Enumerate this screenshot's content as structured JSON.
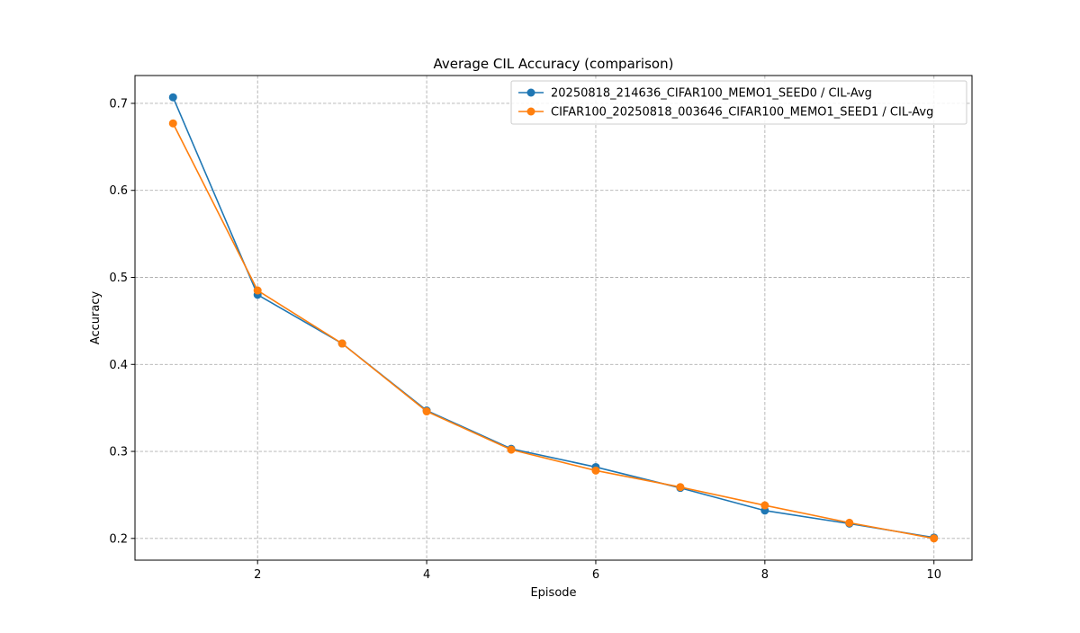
{
  "chart_data": {
    "type": "line",
    "title": "Average CIL Accuracy (comparison)",
    "xlabel": "Episode",
    "ylabel": "Accuracy",
    "xlim": [
      0.55,
      10.45
    ],
    "ylim": [
      0.175,
      0.732
    ],
    "xticks": [
      2,
      4,
      6,
      8,
      10
    ],
    "yticks": [
      0.2,
      0.3,
      0.4,
      0.5,
      0.6,
      0.7
    ],
    "xtick_labels": [
      "2",
      "4",
      "6",
      "8",
      "10"
    ],
    "ytick_labels": [
      "0.2",
      "0.3",
      "0.4",
      "0.5",
      "0.6",
      "0.7"
    ],
    "grid": true,
    "legend_position": "top-right",
    "x": [
      1,
      2,
      3,
      4,
      5,
      6,
      7,
      8,
      9,
      10
    ],
    "series": [
      {
        "name": "20250818_214636_CIFAR100_MEMO1_SEED0 / CIL-Avg",
        "color": "#1f77b4",
        "marker": "circle",
        "values": [
          0.707,
          0.48,
          0.424,
          0.347,
          0.303,
          0.282,
          0.258,
          0.232,
          0.217,
          0.201
        ]
      },
      {
        "name": "CIFAR100_20250818_003646_CIFAR100_MEMO1_SEED1 / CIL-Avg",
        "color": "#ff7f0e",
        "marker": "circle",
        "values": [
          0.677,
          0.485,
          0.424,
          0.346,
          0.302,
          0.278,
          0.259,
          0.238,
          0.218,
          0.2
        ]
      }
    ]
  }
}
